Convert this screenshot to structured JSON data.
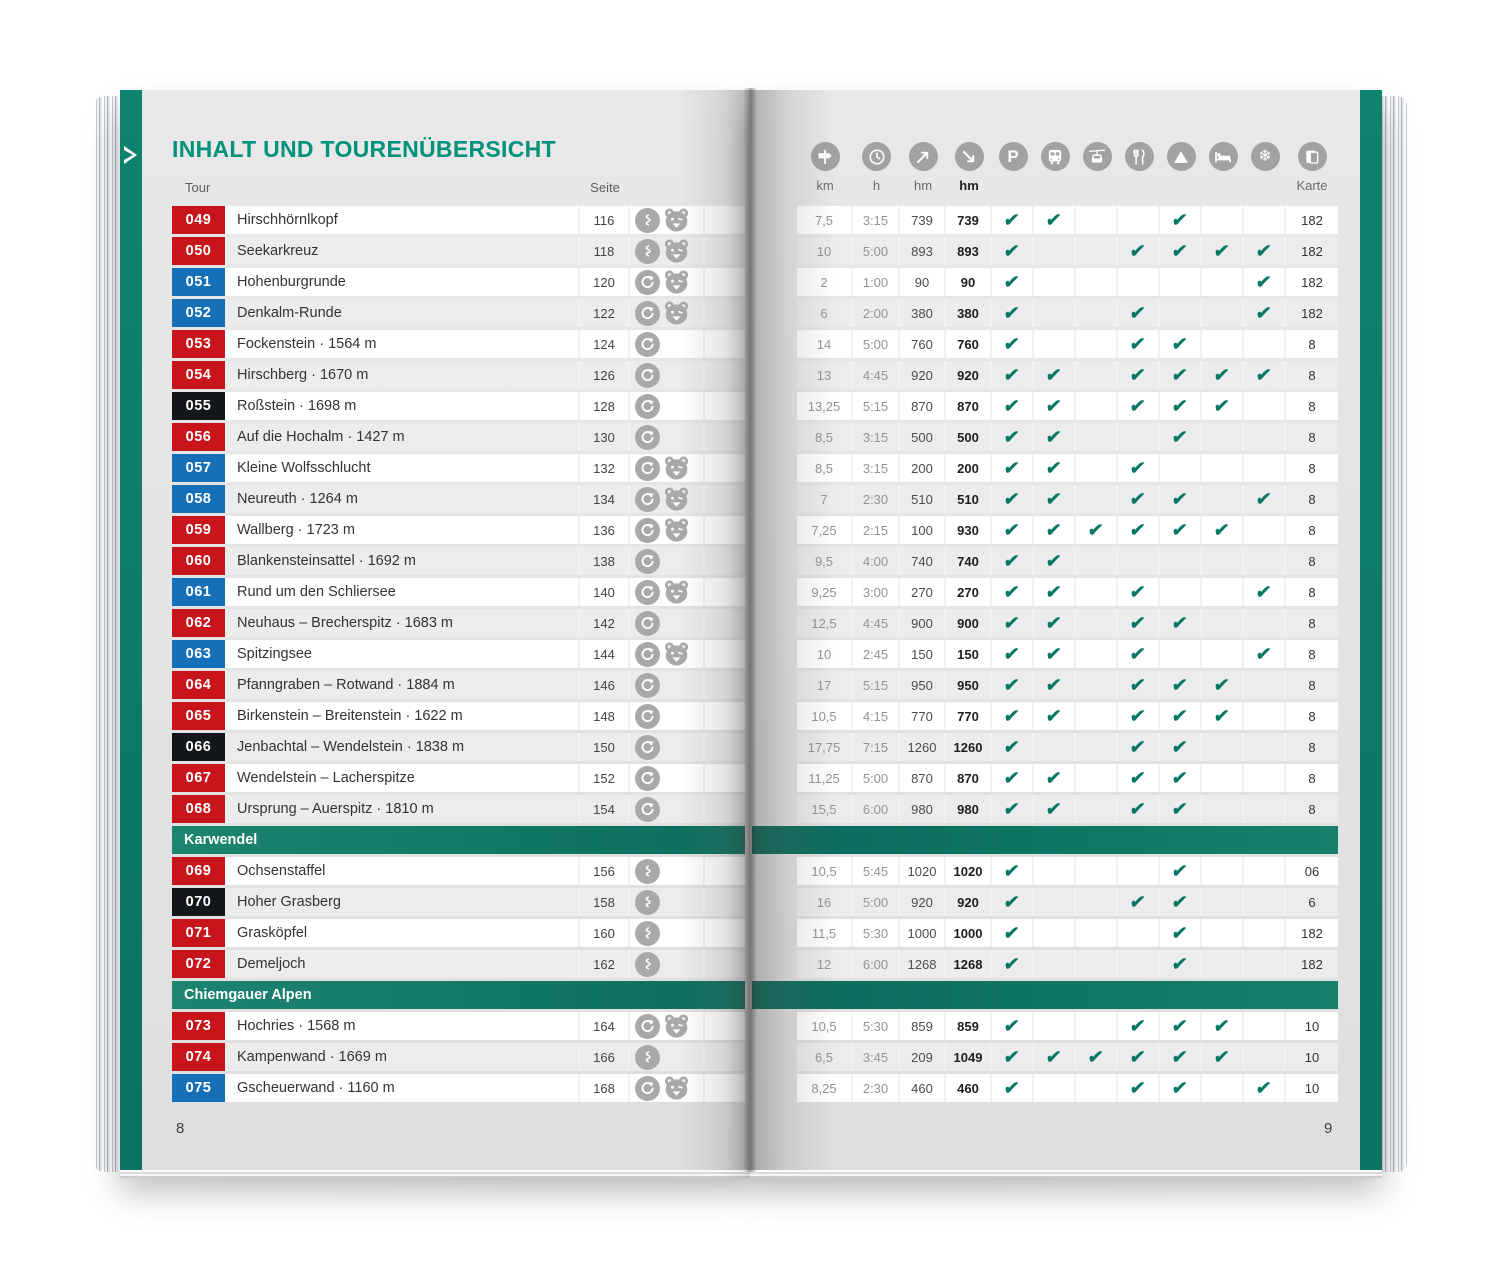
{
  "page": {
    "title": "INHALT UND TOURENÜBERSICHT",
    "left_page_number": "8",
    "right_page_number": "9"
  },
  "colors": {
    "brand_teal": "#00927B",
    "section_band_teal": "#0F7A6A",
    "check_green": "#067763",
    "badge_red": "#C8151B",
    "badge_blue": "#1670B8",
    "badge_black": "#14171A"
  },
  "table_head": {
    "tour": "Tour",
    "seite": "Seite",
    "karte_label": "Karte",
    "measures": [
      {
        "icon": "signpost",
        "label": "km"
      },
      {
        "icon": "clock",
        "label": "h"
      },
      {
        "icon": "ascent",
        "label": "hm"
      },
      {
        "icon": "descent",
        "label": "hm"
      }
    ],
    "features": [
      "parking",
      "bus",
      "cablecar",
      "restaurant",
      "mountain",
      "bed",
      "snowflake"
    ],
    "karte_icon": "map"
  },
  "rows": [
    {
      "type": "tour",
      "number": "049",
      "badge": "red",
      "name": "Hirschhörnlkopf",
      "seite": "116",
      "route_icons": [
        "trail",
        "bear"
      ],
      "km": "7,5",
      "h": "3:15",
      "hm_up": "739",
      "hm_down": "739",
      "features": [
        1,
        1,
        0,
        0,
        1,
        0,
        0
      ],
      "karte": "182"
    },
    {
      "type": "tour",
      "number": "050",
      "badge": "red",
      "name": "Seekarkreuz",
      "seite": "118",
      "route_icons": [
        "trail",
        "bear"
      ],
      "km": "10",
      "h": "5:00",
      "hm_up": "893",
      "hm_down": "893",
      "features": [
        1,
        0,
        0,
        1,
        1,
        1,
        1
      ],
      "karte": "182"
    },
    {
      "type": "tour",
      "number": "051",
      "badge": "blue",
      "name": "Hohenburgrunde",
      "seite": "120",
      "route_icons": [
        "loop",
        "bear"
      ],
      "km": "2",
      "h": "1:00",
      "hm_up": "90",
      "hm_down": "90",
      "features": [
        1,
        0,
        0,
        0,
        0,
        0,
        1
      ],
      "karte": "182"
    },
    {
      "type": "tour",
      "number": "052",
      "badge": "blue",
      "name": "Denkalm-Runde",
      "seite": "122",
      "route_icons": [
        "loop",
        "bear"
      ],
      "km": "6",
      "h": "2:00",
      "hm_up": "380",
      "hm_down": "380",
      "features": [
        1,
        0,
        0,
        1,
        0,
        0,
        1
      ],
      "karte": "182"
    },
    {
      "type": "tour",
      "number": "053",
      "badge": "red",
      "name": "Fockenstein · 1564 m",
      "seite": "124",
      "route_icons": [
        "loop"
      ],
      "km": "14",
      "h": "5:00",
      "hm_up": "760",
      "hm_down": "760",
      "features": [
        1,
        0,
        0,
        1,
        1,
        0,
        0
      ],
      "karte": "8"
    },
    {
      "type": "tour",
      "number": "054",
      "badge": "red",
      "name": "Hirschberg · 1670 m",
      "seite": "126",
      "route_icons": [
        "loop"
      ],
      "km": "13",
      "h": "4:45",
      "hm_up": "920",
      "hm_down": "920",
      "features": [
        1,
        1,
        0,
        1,
        1,
        1,
        1
      ],
      "karte": "8"
    },
    {
      "type": "tour",
      "number": "055",
      "badge": "black",
      "name": "Roßstein · 1698 m",
      "seite": "128",
      "route_icons": [
        "loop"
      ],
      "km": "13,25",
      "h": "5:15",
      "hm_up": "870",
      "hm_down": "870",
      "features": [
        1,
        1,
        0,
        1,
        1,
        1,
        0
      ],
      "karte": "8"
    },
    {
      "type": "tour",
      "number": "056",
      "badge": "red",
      "name": "Auf die Hochalm · 1427 m",
      "seite": "130",
      "route_icons": [
        "loop"
      ],
      "km": "8,5",
      "h": "3:15",
      "hm_up": "500",
      "hm_down": "500",
      "features": [
        1,
        1,
        0,
        0,
        1,
        0,
        0
      ],
      "karte": "8"
    },
    {
      "type": "tour",
      "number": "057",
      "badge": "blue",
      "name": "Kleine Wolfsschlucht",
      "seite": "132",
      "route_icons": [
        "loop",
        "bear"
      ],
      "km": "8,5",
      "h": "3:15",
      "hm_up": "200",
      "hm_down": "200",
      "features": [
        1,
        1,
        0,
        1,
        0,
        0,
        0
      ],
      "karte": "8"
    },
    {
      "type": "tour",
      "number": "058",
      "badge": "blue",
      "name": "Neureuth · 1264 m",
      "seite": "134",
      "route_icons": [
        "loop",
        "bear"
      ],
      "km": "7",
      "h": "2:30",
      "hm_up": "510",
      "hm_down": "510",
      "features": [
        1,
        1,
        0,
        1,
        1,
        0,
        1
      ],
      "karte": "8"
    },
    {
      "type": "tour",
      "number": "059",
      "badge": "red",
      "name": "Wallberg · 1723 m",
      "seite": "136",
      "route_icons": [
        "loop",
        "bear"
      ],
      "km": "7,25",
      "h": "2:15",
      "hm_up": "100",
      "hm_down": "930",
      "features": [
        1,
        1,
        1,
        1,
        1,
        1,
        0
      ],
      "karte": "8"
    },
    {
      "type": "tour",
      "number": "060",
      "badge": "red",
      "name": "Blankensteinsattel · 1692 m",
      "seite": "138",
      "route_icons": [
        "loop"
      ],
      "km": "9,5",
      "h": "4:00",
      "hm_up": "740",
      "hm_down": "740",
      "features": [
        1,
        1,
        0,
        0,
        0,
        0,
        0
      ],
      "karte": "8"
    },
    {
      "type": "tour",
      "number": "061",
      "badge": "blue",
      "name": "Rund um den Schliersee",
      "seite": "140",
      "route_icons": [
        "loop",
        "bear"
      ],
      "km": "9,25",
      "h": "3:00",
      "hm_up": "270",
      "hm_down": "270",
      "features": [
        1,
        1,
        0,
        1,
        0,
        0,
        1
      ],
      "karte": "8"
    },
    {
      "type": "tour",
      "number": "062",
      "badge": "red",
      "name": "Neuhaus – Brecherspitz · 1683 m",
      "seite": "142",
      "route_icons": [
        "loop"
      ],
      "km": "12,5",
      "h": "4:45",
      "hm_up": "900",
      "hm_down": "900",
      "features": [
        1,
        1,
        0,
        1,
        1,
        0,
        0
      ],
      "karte": "8"
    },
    {
      "type": "tour",
      "number": "063",
      "badge": "blue",
      "name": "Spitzingsee",
      "seite": "144",
      "route_icons": [
        "loop",
        "bear"
      ],
      "km": "10",
      "h": "2:45",
      "hm_up": "150",
      "hm_down": "150",
      "features": [
        1,
        1,
        0,
        1,
        0,
        0,
        1
      ],
      "karte": "8"
    },
    {
      "type": "tour",
      "number": "064",
      "badge": "red",
      "name": "Pfanngraben – Rotwand · 1884 m",
      "seite": "146",
      "route_icons": [
        "loop"
      ],
      "km": "17",
      "h": "5:15",
      "hm_up": "950",
      "hm_down": "950",
      "features": [
        1,
        1,
        0,
        1,
        1,
        1,
        0
      ],
      "karte": "8"
    },
    {
      "type": "tour",
      "number": "065",
      "badge": "red",
      "name": "Birkenstein – Breitenstein · 1622 m",
      "seite": "148",
      "route_icons": [
        "loop"
      ],
      "km": "10,5",
      "h": "4:15",
      "hm_up": "770",
      "hm_down": "770",
      "features": [
        1,
        1,
        0,
        1,
        1,
        1,
        0
      ],
      "karte": "8"
    },
    {
      "type": "tour",
      "number": "066",
      "badge": "black",
      "name": "Jenbachtal – Wendelstein · 1838 m",
      "seite": "150",
      "route_icons": [
        "loop"
      ],
      "km": "17,75",
      "h": "7:15",
      "hm_up": "1260",
      "hm_down": "1260",
      "features": [
        1,
        0,
        0,
        1,
        1,
        0,
        0
      ],
      "karte": "8"
    },
    {
      "type": "tour",
      "number": "067",
      "badge": "red",
      "name": "Wendelstein – Lacherspitze",
      "seite": "152",
      "route_icons": [
        "loop"
      ],
      "km": "11,25",
      "h": "5:00",
      "hm_up": "870",
      "hm_down": "870",
      "features": [
        1,
        1,
        0,
        1,
        1,
        0,
        0
      ],
      "karte": "8"
    },
    {
      "type": "tour",
      "number": "068",
      "badge": "red",
      "name": "Ursprung – Auerspitz · 1810 m",
      "seite": "154",
      "route_icons": [
        "loop"
      ],
      "km": "15,5",
      "h": "6:00",
      "hm_up": "980",
      "hm_down": "980",
      "features": [
        1,
        1,
        0,
        1,
        1,
        0,
        0
      ],
      "karte": "8"
    },
    {
      "type": "section",
      "label": "Karwendel"
    },
    {
      "type": "tour",
      "number": "069",
      "badge": "red",
      "name": "Ochsenstaffel",
      "seite": "156",
      "route_icons": [
        "trail"
      ],
      "km": "10,5",
      "h": "5:45",
      "hm_up": "1020",
      "hm_down": "1020",
      "features": [
        1,
        0,
        0,
        0,
        1,
        0,
        0
      ],
      "karte": "06"
    },
    {
      "type": "tour",
      "number": "070",
      "badge": "black",
      "name": "Hoher Grasberg",
      "seite": "158",
      "route_icons": [
        "trail"
      ],
      "km": "16",
      "h": "5:00",
      "hm_up": "920",
      "hm_down": "920",
      "features": [
        1,
        0,
        0,
        1,
        1,
        0,
        0
      ],
      "karte": "6"
    },
    {
      "type": "tour",
      "number": "071",
      "badge": "red",
      "name": "Grasköpfel",
      "seite": "160",
      "route_icons": [
        "trail"
      ],
      "km": "11,5",
      "h": "5:30",
      "hm_up": "1000",
      "hm_down": "1000",
      "features": [
        1,
        0,
        0,
        0,
        1,
        0,
        0
      ],
      "karte": "182"
    },
    {
      "type": "tour",
      "number": "072",
      "badge": "red",
      "name": "Demeljoch",
      "seite": "162",
      "route_icons": [
        "trail"
      ],
      "km": "12",
      "h": "6:00",
      "hm_up": "1268",
      "hm_down": "1268",
      "features": [
        1,
        0,
        0,
        0,
        1,
        0,
        0
      ],
      "karte": "182"
    },
    {
      "type": "section",
      "label": "Chiemgauer Alpen"
    },
    {
      "type": "tour",
      "number": "073",
      "badge": "red",
      "name": "Hochries · 1568 m",
      "seite": "164",
      "route_icons": [
        "loop",
        "bear"
      ],
      "km": "10,5",
      "h": "5:30",
      "hm_up": "859",
      "hm_down": "859",
      "features": [
        1,
        0,
        0,
        1,
        1,
        1,
        0
      ],
      "karte": "10"
    },
    {
      "type": "tour",
      "number": "074",
      "badge": "red",
      "name": "Kampenwand · 1669 m",
      "seite": "166",
      "route_icons": [
        "trail"
      ],
      "km": "6,5",
      "h": "3:45",
      "hm_up": "209",
      "hm_down": "1049",
      "features": [
        1,
        1,
        1,
        1,
        1,
        1,
        0
      ],
      "karte": "10"
    },
    {
      "type": "tour",
      "number": "075",
      "badge": "blue",
      "name": "Gscheuerwand · 1160 m",
      "seite": "168",
      "route_icons": [
        "loop",
        "bear"
      ],
      "km": "8,25",
      "h": "2:30",
      "hm_up": "460",
      "hm_down": "460",
      "features": [
        1,
        0,
        0,
        1,
        1,
        0,
        1
      ],
      "karte": "10"
    }
  ]
}
